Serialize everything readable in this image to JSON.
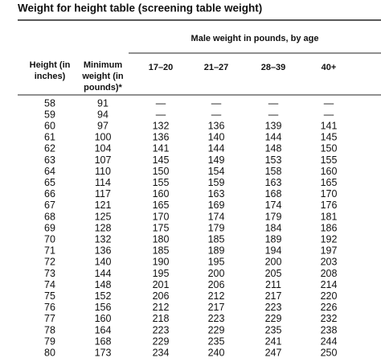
{
  "title": "Weight for height table (screening table weight)",
  "table": {
    "group_header": "Male weight in pounds, by age",
    "headers": [
      "Height (in inches)",
      "Minimum weight (in pounds)*",
      "17–20",
      "21–27",
      "28–39",
      "40+"
    ],
    "rows": [
      [
        58,
        91,
        "—",
        "—",
        "—",
        "—"
      ],
      [
        59,
        94,
        "—",
        "—",
        "—",
        "—"
      ],
      [
        60,
        97,
        132,
        136,
        139,
        141
      ],
      [
        61,
        100,
        136,
        140,
        144,
        145
      ],
      [
        62,
        104,
        141,
        144,
        148,
        150
      ],
      [
        63,
        107,
        145,
        149,
        153,
        155
      ],
      [
        64,
        110,
        150,
        154,
        158,
        160
      ],
      [
        65,
        114,
        155,
        159,
        163,
        165
      ],
      [
        66,
        117,
        160,
        163,
        168,
        170
      ],
      [
        67,
        121,
        165,
        169,
        174,
        176
      ],
      [
        68,
        125,
        170,
        174,
        179,
        181
      ],
      [
        69,
        128,
        175,
        179,
        184,
        186
      ],
      [
        70,
        132,
        180,
        185,
        189,
        192
      ],
      [
        71,
        136,
        185,
        189,
        194,
        197
      ],
      [
        72,
        140,
        190,
        195,
        200,
        203
      ],
      [
        73,
        144,
        195,
        200,
        205,
        208
      ],
      [
        74,
        148,
        201,
        206,
        211,
        214
      ],
      [
        75,
        152,
        206,
        212,
        217,
        220
      ],
      [
        76,
        156,
        212,
        217,
        223,
        226
      ],
      [
        77,
        160,
        218,
        223,
        229,
        232
      ],
      [
        78,
        164,
        223,
        229,
        235,
        238
      ],
      [
        79,
        168,
        229,
        235,
        241,
        244
      ],
      [
        80,
        173,
        234,
        240,
        247,
        250
      ]
    ]
  }
}
